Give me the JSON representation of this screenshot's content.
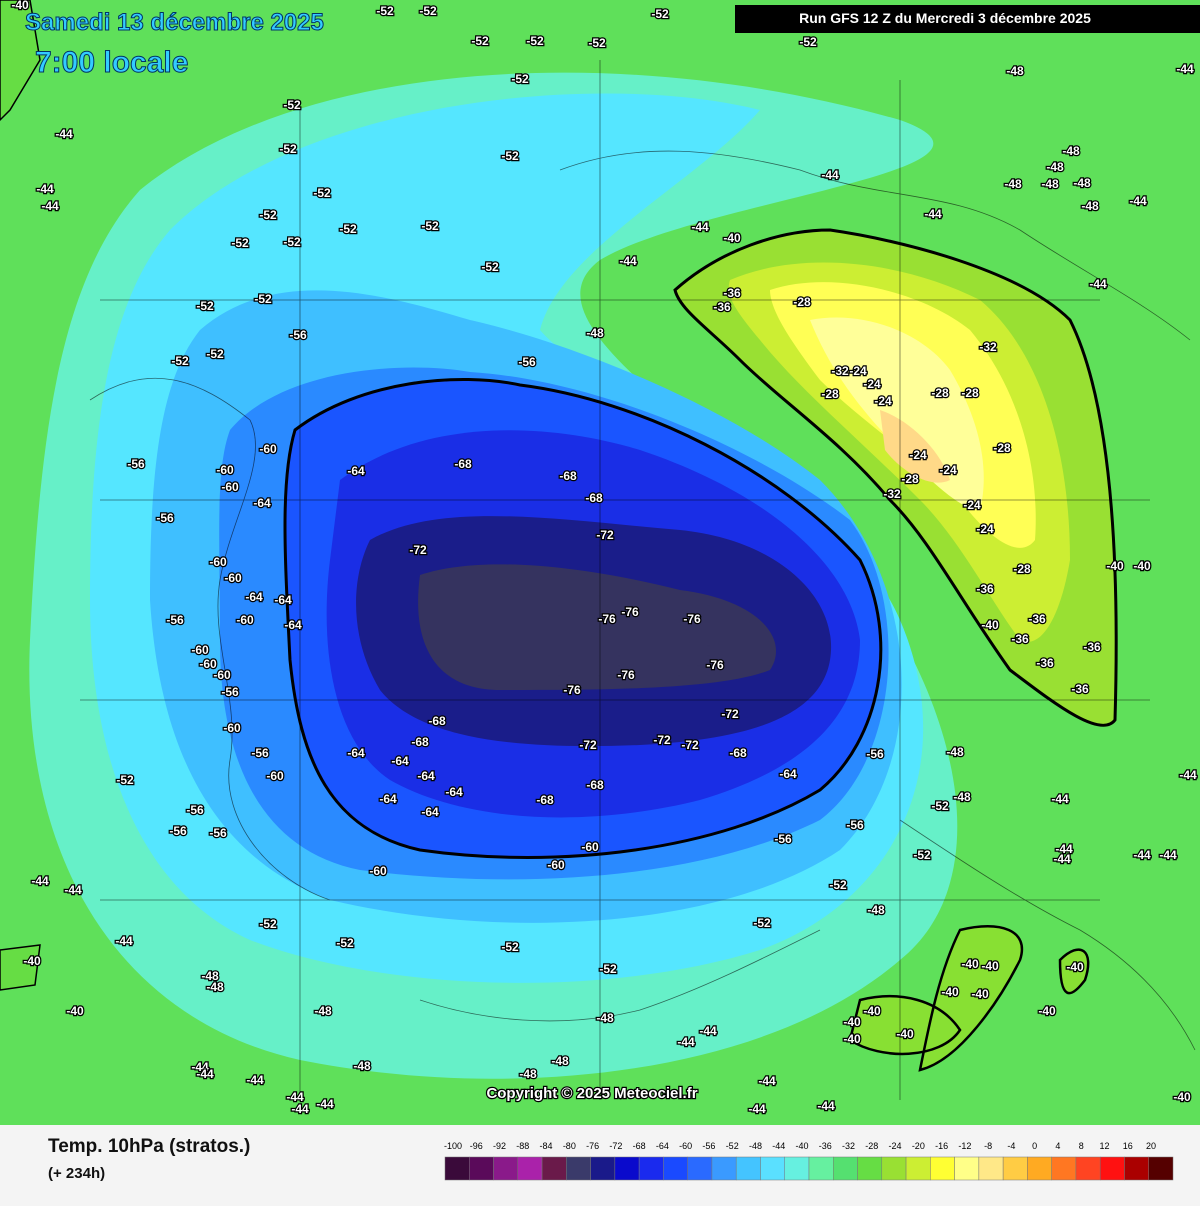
{
  "header": {
    "date": "Samedi 13 décembre 2025",
    "time": "7:00 locale",
    "run": "Run GFS 12 Z du Mercredi 3 décembre 2025"
  },
  "copyright": "Copyright © 2025 Meteociel.fr",
  "legend": {
    "title": "Temp. 10hPa (stratos.)",
    "forecast": "(+ 234h)",
    "ticks": [
      -100,
      -96,
      -92,
      -88,
      -84,
      -80,
      -76,
      -72,
      -68,
      -64,
      -60,
      -56,
      -52,
      -48,
      -44,
      -40,
      -36,
      -32,
      -28,
      -24,
      -20,
      -16,
      -12,
      -8,
      -4,
      0,
      4,
      8,
      12,
      16,
      20
    ],
    "colors": [
      "#3a0a3a",
      "#5a0a5a",
      "#8a1a8a",
      "#aa22aa",
      "#6a1a4a",
      "#3a3a6a",
      "#1a1a8a",
      "#0a0acc",
      "#1a2aee",
      "#1a4aff",
      "#2a6aff",
      "#3a9aff",
      "#44c4ff",
      "#5ae0ff",
      "#66f0e0",
      "#66f0a0",
      "#55e070",
      "#66dd44",
      "#99e033",
      "#ccee33",
      "#ffff33",
      "#ffff88",
      "#ffe888",
      "#ffcc44",
      "#ffaa22",
      "#ff7722",
      "#ff4422",
      "#ff1111",
      "#aa0000",
      "#550000"
    ]
  },
  "contour_labels": [
    [
      -52,
      -52,
      -52,
      -52,
      -52,
      -52,
      -52,
      -52,
      -52,
      -52,
      -52,
      -52,
      -52,
      -52,
      -52,
      -52,
      -52,
      -52,
      -52,
      -52,
      -52,
      -52,
      -52,
      -52,
      -52,
      -52,
      -52,
      -52,
      -52,
      -52,
      -52
    ],
    [
      -56,
      -56,
      -56,
      -56,
      -56,
      -56,
      -56,
      -56,
      -56,
      -56,
      -56,
      -56,
      -56
    ],
    [
      -60,
      -60,
      -60,
      -60,
      -60,
      -60,
      -60,
      -60,
      -60,
      -60,
      -60,
      -60,
      -60,
      -60
    ],
    [
      -64,
      -64,
      -64,
      -64,
      -64,
      -64,
      -64,
      -64,
      -64,
      -64,
      -64,
      -64
    ],
    [
      -68,
      -68,
      -68,
      -68,
      -68,
      -68,
      -68,
      -68
    ],
    [
      -72,
      -72,
      -72,
      -72,
      -72,
      -72
    ],
    [
      -76,
      -76,
      -76,
      -76,
      -76,
      -76
    ],
    [
      -48,
      -48,
      -48,
      -48,
      -48,
      -48,
      -48,
      -48,
      -48,
      -48,
      -48,
      -48,
      -48,
      -48,
      -48,
      -48,
      -48,
      -48
    ],
    [
      -44,
      -44,
      -44,
      -44,
      -44,
      -44,
      -44,
      -44,
      -44,
      -44,
      -44,
      -44,
      -44,
      -44,
      -44,
      -44,
      -44,
      -44,
      -44,
      -44,
      -44,
      -44,
      -44,
      -44,
      -44,
      -44,
      -44,
      -44,
      -44,
      -44
    ],
    [
      -40,
      -40,
      -40,
      -40,
      -40,
      -40,
      -40,
      -40,
      -40,
      -40,
      -40,
      -40,
      -40,
      -40,
      -40,
      -40,
      -40,
      -40
    ],
    [
      -36,
      -36,
      -36,
      -36,
      -36,
      -36,
      -36,
      -36
    ],
    [
      -32,
      -32,
      -32
    ],
    [
      -28,
      -28,
      -28,
      -28,
      -28,
      -28,
      -28
    ],
    [
      -24,
      -24,
      -24,
      -24,
      -24,
      -24,
      -24
    ]
  ]
}
